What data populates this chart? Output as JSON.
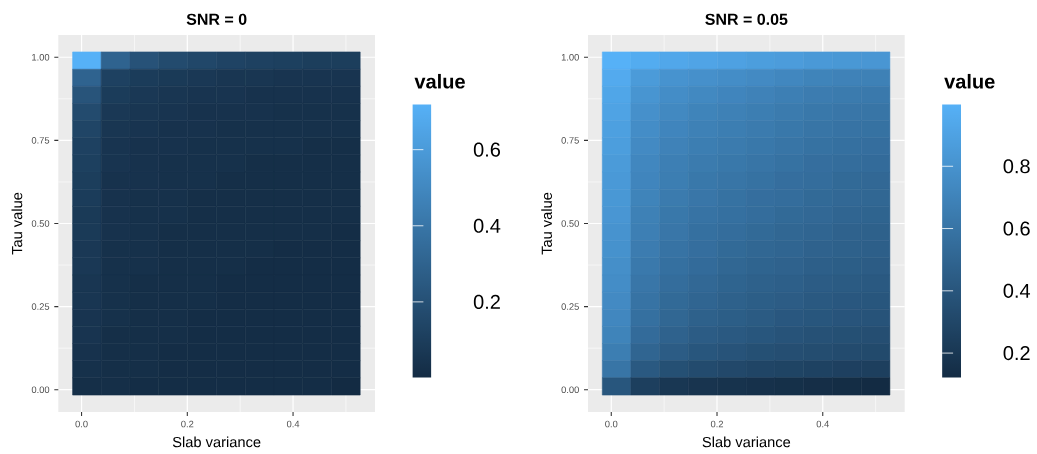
{
  "chart_data": [
    {
      "type": "heatmap",
      "title": "SNR = 0",
      "xlabel": "Slab variance",
      "ylabel": "Tau value",
      "clabel": "value",
      "x": [
        0.01,
        0.064,
        0.119,
        0.173,
        0.228,
        0.282,
        0.337,
        0.391,
        0.446,
        0.5
      ],
      "y": [
        0.99,
        0.938,
        0.887,
        0.835,
        0.784,
        0.732,
        0.681,
        0.629,
        0.577,
        0.526,
        0.474,
        0.423,
        0.371,
        0.319,
        0.268,
        0.216,
        0.165,
        0.113,
        0.062,
        0.01
      ],
      "cells": [
        [
          0.72,
          0.3,
          0.21,
          0.17,
          0.15,
          0.13,
          0.12,
          0.11,
          0.1,
          0.1
        ],
        [
          0.3,
          0.12,
          0.09,
          0.08,
          0.07,
          0.06,
          0.06,
          0.05,
          0.05,
          0.05
        ],
        [
          0.22,
          0.09,
          0.07,
          0.06,
          0.05,
          0.05,
          0.04,
          0.04,
          0.04,
          0.04
        ],
        [
          0.17,
          0.07,
          0.06,
          0.05,
          0.04,
          0.04,
          0.04,
          0.03,
          0.03,
          0.03
        ],
        [
          0.14,
          0.06,
          0.05,
          0.04,
          0.04,
          0.03,
          0.03,
          0.03,
          0.03,
          0.03
        ],
        [
          0.12,
          0.05,
          0.04,
          0.04,
          0.03,
          0.03,
          0.03,
          0.03,
          0.02,
          0.02
        ],
        [
          0.11,
          0.05,
          0.04,
          0.03,
          0.03,
          0.03,
          0.02,
          0.02,
          0.02,
          0.02
        ],
        [
          0.1,
          0.04,
          0.04,
          0.03,
          0.03,
          0.02,
          0.02,
          0.02,
          0.02,
          0.02
        ],
        [
          0.09,
          0.04,
          0.03,
          0.03,
          0.02,
          0.02,
          0.02,
          0.02,
          0.02,
          0.02
        ],
        [
          0.08,
          0.04,
          0.03,
          0.03,
          0.02,
          0.02,
          0.02,
          0.02,
          0.02,
          0.02
        ],
        [
          0.08,
          0.04,
          0.03,
          0.02,
          0.02,
          0.02,
          0.02,
          0.02,
          0.02,
          0.01
        ],
        [
          0.07,
          0.03,
          0.03,
          0.02,
          0.02,
          0.02,
          0.02,
          0.01,
          0.01,
          0.01
        ],
        [
          0.07,
          0.03,
          0.03,
          0.02,
          0.02,
          0.02,
          0.01,
          0.01,
          0.01,
          0.01
        ],
        [
          0.06,
          0.03,
          0.02,
          0.02,
          0.02,
          0.01,
          0.01,
          0.01,
          0.01,
          0.01
        ],
        [
          0.06,
          0.03,
          0.02,
          0.02,
          0.02,
          0.01,
          0.01,
          0.01,
          0.01,
          0.01
        ],
        [
          0.05,
          0.03,
          0.02,
          0.02,
          0.01,
          0.01,
          0.01,
          0.01,
          0.01,
          0.01
        ],
        [
          0.05,
          0.02,
          0.02,
          0.02,
          0.01,
          0.01,
          0.01,
          0.01,
          0.01,
          0.01
        ],
        [
          0.04,
          0.02,
          0.02,
          0.01,
          0.01,
          0.01,
          0.01,
          0.01,
          0.01,
          0.01
        ],
        [
          0.03,
          0.02,
          0.02,
          0.01,
          0.01,
          0.01,
          0.01,
          0.01,
          0.01,
          0.01
        ],
        [
          0.02,
          0.02,
          0.01,
          0.01,
          0.01,
          0.01,
          0.01,
          0.01,
          0.01,
          0.0
        ]
      ],
      "clim": [
        0,
        0.72
      ],
      "cticks": [
        0.2,
        0.4,
        0.6
      ],
      "xlim": [
        -0.044,
        0.555
      ],
      "ylim": [
        -0.067,
        1.067
      ],
      "xticks": [
        {
          "value": 0,
          "label": "0.0"
        },
        {
          "value": 0.2,
          "label": "0.2"
        },
        {
          "value": 0.4,
          "label": "0.4"
        }
      ],
      "yticks": [
        {
          "value": 0,
          "label": "0.00"
        },
        {
          "value": 0.25,
          "label": "0.25"
        },
        {
          "value": 0.5,
          "label": "0.50"
        },
        {
          "value": 0.75,
          "label": "0.75"
        },
        {
          "value": 1,
          "label": "1.00"
        }
      ],
      "grid": true
    },
    {
      "type": "heatmap",
      "title": "SNR = 0.05",
      "xlabel": "Slab variance",
      "ylabel": "Tau value",
      "clabel": "value",
      "x": [
        0.01,
        0.064,
        0.119,
        0.173,
        0.228,
        0.282,
        0.337,
        0.391,
        0.446,
        0.5
      ],
      "y": [
        0.99,
        0.938,
        0.887,
        0.835,
        0.784,
        0.732,
        0.681,
        0.629,
        0.577,
        0.526,
        0.474,
        0.423,
        0.371,
        0.319,
        0.268,
        0.216,
        0.165,
        0.113,
        0.062,
        0.01
      ],
      "cells": [
        [
          1.0,
          0.96,
          0.93,
          0.91,
          0.89,
          0.87,
          0.86,
          0.84,
          0.83,
          0.82
        ],
        [
          0.95,
          0.85,
          0.8,
          0.78,
          0.76,
          0.74,
          0.72,
          0.7,
          0.69,
          0.68
        ],
        [
          0.92,
          0.81,
          0.76,
          0.73,
          0.71,
          0.69,
          0.67,
          0.65,
          0.64,
          0.63
        ],
        [
          0.9,
          0.78,
          0.73,
          0.7,
          0.68,
          0.66,
          0.64,
          0.62,
          0.61,
          0.6
        ],
        [
          0.88,
          0.76,
          0.71,
          0.68,
          0.66,
          0.64,
          0.62,
          0.6,
          0.59,
          0.58
        ],
        [
          0.87,
          0.74,
          0.69,
          0.66,
          0.64,
          0.62,
          0.6,
          0.58,
          0.57,
          0.56
        ],
        [
          0.85,
          0.72,
          0.67,
          0.64,
          0.62,
          0.6,
          0.58,
          0.56,
          0.55,
          0.54
        ],
        [
          0.84,
          0.71,
          0.66,
          0.62,
          0.6,
          0.58,
          0.56,
          0.55,
          0.53,
          0.52
        ],
        [
          0.83,
          0.7,
          0.64,
          0.61,
          0.58,
          0.56,
          0.55,
          0.53,
          0.52,
          0.51
        ],
        [
          0.82,
          0.68,
          0.62,
          0.59,
          0.57,
          0.55,
          0.53,
          0.52,
          0.5,
          0.49
        ],
        [
          0.8,
          0.67,
          0.61,
          0.57,
          0.55,
          0.53,
          0.51,
          0.5,
          0.48,
          0.47
        ],
        [
          0.79,
          0.65,
          0.59,
          0.56,
          0.53,
          0.51,
          0.5,
          0.48,
          0.47,
          0.46
        ],
        [
          0.77,
          0.63,
          0.57,
          0.54,
          0.51,
          0.49,
          0.48,
          0.46,
          0.45,
          0.44
        ],
        [
          0.76,
          0.61,
          0.55,
          0.52,
          0.49,
          0.47,
          0.46,
          0.44,
          0.43,
          0.42
        ],
        [
          0.74,
          0.59,
          0.53,
          0.5,
          0.47,
          0.45,
          0.44,
          0.42,
          0.41,
          0.4
        ],
        [
          0.72,
          0.57,
          0.51,
          0.47,
          0.45,
          0.43,
          0.41,
          0.4,
          0.39,
          0.38
        ],
        [
          0.7,
          0.54,
          0.48,
          0.44,
          0.42,
          0.4,
          0.38,
          0.37,
          0.36,
          0.35
        ],
        [
          0.66,
          0.5,
          0.44,
          0.4,
          0.38,
          0.36,
          0.35,
          0.34,
          0.33,
          0.32
        ],
        [
          0.6,
          0.42,
          0.36,
          0.33,
          0.31,
          0.29,
          0.28,
          0.27,
          0.26,
          0.25
        ],
        [
          0.4,
          0.25,
          0.2,
          0.18,
          0.17,
          0.16,
          0.15,
          0.14,
          0.13,
          0.12
        ]
      ],
      "clim": [
        0.12,
        1.0
      ],
      "cticks": [
        0.2,
        0.4,
        0.6,
        0.8
      ],
      "xlim": [
        -0.044,
        0.555
      ],
      "ylim": [
        -0.067,
        1.067
      ],
      "xticks": [
        {
          "value": 0,
          "label": "0.0"
        },
        {
          "value": 0.2,
          "label": "0.2"
        },
        {
          "value": 0.4,
          "label": "0.4"
        }
      ],
      "yticks": [
        {
          "value": 0,
          "label": "0.00"
        },
        {
          "value": 0.25,
          "label": "0.25"
        },
        {
          "value": 0.5,
          "label": "0.50"
        },
        {
          "value": 0.75,
          "label": "0.75"
        },
        {
          "value": 1,
          "label": "1.00"
        }
      ],
      "grid": true
    }
  ]
}
